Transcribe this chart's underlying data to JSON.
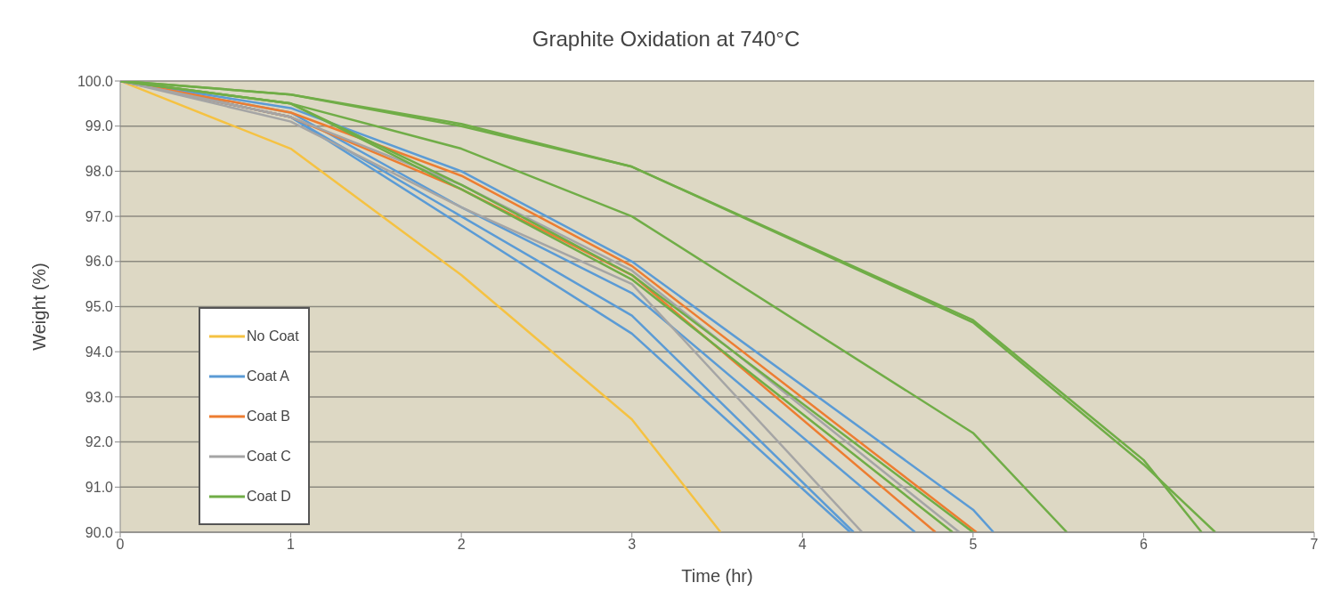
{
  "chart_data": {
    "type": "line",
    "title": "Graphite Oxidation at 740°C",
    "xlabel": "Time (hr)",
    "ylabel": "Weight (%)",
    "xlim": [
      0,
      7
    ],
    "xticks": [
      0,
      1,
      2,
      3,
      4,
      5,
      6,
      7
    ],
    "ylim": [
      90,
      100
    ],
    "yticks": [
      {
        "value": 90,
        "label": "90.0"
      },
      {
        "value": 91,
        "label": "91.0"
      },
      {
        "value": 92,
        "label": "92.0"
      },
      {
        "value": 93,
        "label": "93.0"
      },
      {
        "value": 94,
        "label": "94.0"
      },
      {
        "value": 95,
        "label": "95.0"
      },
      {
        "value": 96,
        "label": "96.0"
      },
      {
        "value": 97,
        "label": "97.0"
      },
      {
        "value": 98,
        "label": "98.0"
      },
      {
        "value": 99,
        "label": "99.0"
      },
      {
        "value": 100,
        "label": "100.0"
      }
    ],
    "grid": "y",
    "legend": "bottom left",
    "marker": "none",
    "line_style": "solid",
    "series": [
      {
        "name": "No Coat",
        "color": "#f5c242",
        "x": [
          0,
          1,
          2,
          3,
          3.52
        ],
        "values": [
          100,
          98.5,
          95.7,
          92.5,
          90
        ]
      },
      {
        "name": "Coat A",
        "color": "#5b9bd5",
        "x": [
          0,
          1,
          2,
          3,
          5,
          5.12
        ],
        "values": [
          100,
          99.4,
          98.0,
          96.0,
          90.5,
          90
        ]
      },
      {
        "color": "#5b9bd5",
        "x": [
          0,
          1,
          2,
          3,
          4.66
        ],
        "values": [
          100,
          99.3,
          97.2,
          95.3,
          90
        ]
      },
      {
        "color": "#5b9bd5",
        "x": [
          0,
          1,
          2,
          3,
          4.28
        ],
        "values": [
          100,
          99.2,
          96.8,
          94.4,
          90
        ]
      },
      {
        "color": "#5b9bd5",
        "x": [
          0,
          1,
          2,
          3,
          4.3
        ],
        "values": [
          100,
          99.2,
          97.0,
          94.8,
          90
        ]
      },
      {
        "name": "Coat B",
        "color": "#ed7d31",
        "x": [
          0,
          1,
          2,
          3,
          5.02
        ],
        "values": [
          100,
          99.3,
          97.9,
          95.9,
          90
        ]
      },
      {
        "color": "#ed7d31",
        "x": [
          0,
          1,
          2,
          3,
          4.78
        ],
        "values": [
          100,
          99.2,
          97.6,
          95.7,
          90
        ]
      },
      {
        "name": "Coat C",
        "color": "#a5a5a5",
        "x": [
          0,
          1,
          2,
          3,
          4.35
        ],
        "values": [
          100,
          99.1,
          97.2,
          95.5,
          90
        ]
      },
      {
        "color": "#a5a5a5",
        "x": [
          0,
          1,
          2,
          3,
          4.92
        ],
        "values": [
          100,
          99.2,
          97.7,
          95.8,
          90
        ]
      },
      {
        "name": "Coat D",
        "color": "#70ad47",
        "x": [
          0,
          1,
          2,
          3,
          5,
          6,
          6.34
        ],
        "values": [
          100,
          99.7,
          99.05,
          98.1,
          94.7,
          91.6,
          90
        ]
      },
      {
        "color": "#70ad47",
        "x": [
          0,
          1,
          2,
          3,
          5,
          6,
          6.42
        ],
        "values": [
          100,
          99.7,
          99.0,
          98.1,
          94.65,
          91.5,
          90
        ]
      },
      {
        "color": "#70ad47",
        "x": [
          0,
          1,
          2,
          3,
          5,
          5.55
        ],
        "values": [
          100,
          99.5,
          98.5,
          97.0,
          92.2,
          90
        ]
      },
      {
        "color": "#70ad47",
        "x": [
          0,
          1,
          2,
          3,
          5.0
        ],
        "values": [
          100,
          99.5,
          97.7,
          95.7,
          90
        ]
      },
      {
        "color": "#70ad47",
        "x": [
          0,
          1,
          2,
          3,
          4.88
        ],
        "values": [
          100,
          99.5,
          97.6,
          95.6,
          90
        ]
      }
    ]
  }
}
